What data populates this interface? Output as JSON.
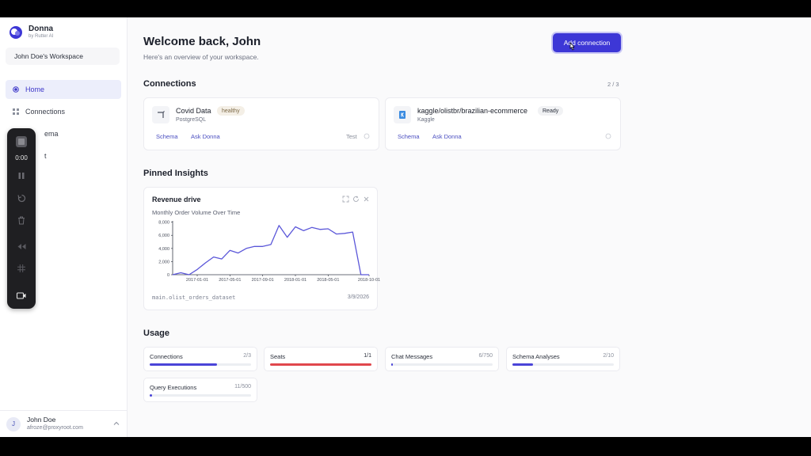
{
  "brand": {
    "name": "Donna",
    "sub": "by Rutter AI"
  },
  "workspace": "John Doe's Workspace",
  "nav": [
    {
      "label": "Home",
      "icon": "home-dot-icon",
      "active": true
    },
    {
      "label": "Connections",
      "icon": "grid-icon",
      "active": false
    },
    {
      "label": "ema",
      "icon": "schema-icon",
      "active": false
    },
    {
      "label": "t",
      "icon": "chat-icon",
      "active": false
    }
  ],
  "user": {
    "initial": "J",
    "name": "John Doe",
    "email": "afroze@proxyroot.com"
  },
  "recorder": {
    "time": "0:00"
  },
  "header": {
    "title": "Welcome back, John",
    "subtitle": "Here's an overview of your workspace.",
    "add_button": "Add connection"
  },
  "connections": {
    "title": "Connections",
    "count": "2 / 3",
    "items": [
      {
        "name": "Covid Data",
        "type": "PostgreSQL",
        "status": "healthy",
        "links": [
          "Schema",
          "Ask Donna"
        ],
        "test": "Test"
      },
      {
        "name": "kaggle/olistbr/brazilian-ecommerce",
        "type": "Kaggle",
        "status": "Ready",
        "links": [
          "Schema",
          "Ask Donna"
        ]
      }
    ]
  },
  "insights": {
    "title": "Pinned Insights",
    "card": {
      "title": "Revenue drive",
      "subtitle": "Monthly Order Volume Over Time",
      "source": "main.olist_orders_dataset",
      "date": "3/9/2026"
    }
  },
  "chart_data": {
    "type": "line",
    "title": "Monthly Order Volume Over Time",
    "x": [
      "2016-09",
      "2016-10",
      "2016-12",
      "2017-01",
      "2017-02",
      "2017-03",
      "2017-04",
      "2017-05",
      "2017-06",
      "2017-07",
      "2017-08",
      "2017-09",
      "2017-10",
      "2017-11",
      "2017-12",
      "2018-01",
      "2018-02",
      "2018-03",
      "2018-04",
      "2018-05",
      "2018-06",
      "2018-07",
      "2018-08",
      "2018-09",
      "2018-10"
    ],
    "values": [
      0,
      300,
      0,
      800,
      1800,
      2700,
      2400,
      3700,
      3300,
      4000,
      4300,
      4300,
      4600,
      7500,
      5700,
      7300,
      6700,
      7200,
      6900,
      7000,
      6200,
      6300,
      6500,
      0,
      0
    ],
    "xticks": [
      "2017-01-01",
      "2017-05-01",
      "2017-09-01",
      "2018-01-01",
      "2018-05-01",
      "2018-10-01"
    ],
    "yticks": [
      "0",
      "2,000",
      "4,000",
      "6,000",
      "8,000"
    ],
    "ylim": [
      0,
      8200
    ],
    "color": "#5b57d9"
  },
  "usage": {
    "title": "Usage",
    "items": [
      {
        "label": "Connections",
        "value": "2/3",
        "fraction": 0.667,
        "color": "#4a44d8"
      },
      {
        "label": "Seats",
        "value": "1/1",
        "fraction": 1.0,
        "color": "#e0474c"
      },
      {
        "label": "Chat Messages",
        "value": "6/750",
        "fraction": 0.008,
        "color": "#4a44d8"
      },
      {
        "label": "Schema Analyses",
        "value": "2/10",
        "fraction": 0.2,
        "color": "#4a44d8"
      },
      {
        "label": "Query Executions",
        "value": "11/500",
        "fraction": 0.022,
        "color": "#4a44d8"
      }
    ]
  }
}
